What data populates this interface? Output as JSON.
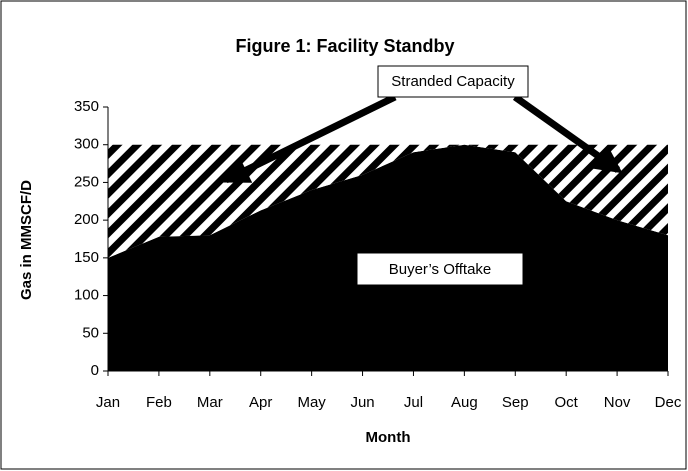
{
  "chart_data": {
    "type": "stacked-area",
    "title": "Figure 1: Facility Standby",
    "xlabel": "Month",
    "ylabel": "Gas in MMSCF/D",
    "categories": [
      "Jan",
      "Feb",
      "Mar",
      "Apr",
      "May",
      "Jun",
      "Jul",
      "Aug",
      "Sep",
      "Oct",
      "Nov",
      "Dec"
    ],
    "series": [
      {
        "name": "Buyer’s Offtake",
        "color": "#000000",
        "fill": "solid",
        "values": [
          150,
          178,
          180,
          213,
          240,
          260,
          290,
          300,
          290,
          225,
          200,
          180
        ]
      },
      {
        "name": "Stranded Capacity",
        "color": "#000000",
        "fill": "diagonal-hatch",
        "values": [
          150,
          122,
          120,
          87,
          60,
          40,
          10,
          0,
          10,
          75,
          100,
          120
        ]
      }
    ],
    "ylim": [
      0,
      350
    ],
    "yticks": [
      0,
      50,
      100,
      150,
      200,
      250,
      300,
      350
    ]
  }
}
